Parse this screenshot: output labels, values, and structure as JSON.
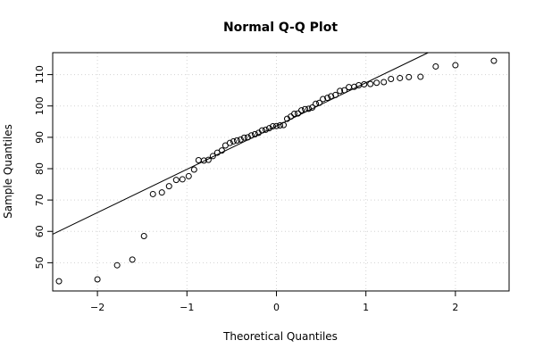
{
  "chart_data": {
    "type": "scatter",
    "title": "Normal Q-Q Plot",
    "xlabel": "Theoretical Quantiles",
    "ylabel": "Sample Quantiles",
    "xlim": [
      -2.5,
      2.6
    ],
    "ylim": [
      41,
      117
    ],
    "xticks": [
      -2,
      -1,
      0,
      1,
      2
    ],
    "yticks": [
      50,
      60,
      70,
      80,
      90,
      100,
      110
    ],
    "grid": true,
    "legend": "none",
    "colors": {
      "points": "#000000",
      "line": "#000000",
      "grid": "#d3d3d3",
      "axis": "#000000"
    },
    "points": [
      [
        -2.43,
        44.1
      ],
      [
        -2.0,
        44.7
      ],
      [
        -1.78,
        49.2
      ],
      [
        -1.61,
        51.0
      ],
      [
        -1.48,
        58.5
      ],
      [
        -1.38,
        71.9
      ],
      [
        -1.28,
        72.4
      ],
      [
        -1.2,
        74.4
      ],
      [
        -1.12,
        76.4
      ],
      [
        -1.05,
        76.6
      ],
      [
        -0.98,
        77.6
      ],
      [
        -0.92,
        79.7
      ],
      [
        -0.87,
        82.7
      ],
      [
        -0.81,
        82.6
      ],
      [
        -0.76,
        82.8
      ],
      [
        -0.71,
        84.0
      ],
      [
        -0.66,
        85.1
      ],
      [
        -0.61,
        85.8
      ],
      [
        -0.57,
        87.4
      ],
      [
        -0.52,
        88.2
      ],
      [
        -0.48,
        88.7
      ],
      [
        -0.44,
        89.0
      ],
      [
        -0.4,
        89.3
      ],
      [
        -0.36,
        89.9
      ],
      [
        -0.32,
        90.0
      ],
      [
        -0.28,
        90.6
      ],
      [
        -0.24,
        91.0
      ],
      [
        -0.2,
        91.4
      ],
      [
        -0.16,
        92.2
      ],
      [
        -0.12,
        92.4
      ],
      [
        -0.08,
        92.9
      ],
      [
        -0.04,
        93.5
      ],
      [
        0.0,
        93.6
      ],
      [
        0.04,
        93.8
      ],
      [
        0.08,
        93.9
      ],
      [
        0.12,
        95.9
      ],
      [
        0.16,
        96.6
      ],
      [
        0.2,
        97.5
      ],
      [
        0.24,
        97.6
      ],
      [
        0.28,
        98.6
      ],
      [
        0.32,
        99.0
      ],
      [
        0.36,
        99.1
      ],
      [
        0.4,
        99.5
      ],
      [
        0.44,
        100.7
      ],
      [
        0.48,
        101.0
      ],
      [
        0.52,
        102.2
      ],
      [
        0.57,
        102.6
      ],
      [
        0.61,
        103.1
      ],
      [
        0.66,
        103.5
      ],
      [
        0.71,
        104.8
      ],
      [
        0.76,
        105.0
      ],
      [
        0.81,
        106.0
      ],
      [
        0.87,
        106.1
      ],
      [
        0.92,
        106.6
      ],
      [
        0.98,
        106.9
      ],
      [
        1.05,
        107.0
      ],
      [
        1.12,
        107.4
      ],
      [
        1.2,
        107.6
      ],
      [
        1.28,
        108.6
      ],
      [
        1.38,
        108.9
      ],
      [
        1.48,
        109.2
      ],
      [
        1.61,
        109.3
      ],
      [
        1.78,
        112.6
      ],
      [
        2.0,
        113.0
      ],
      [
        2.43,
        114.4
      ]
    ],
    "reference_line": {
      "intercept": 93.6,
      "slope": 13.8
    }
  }
}
